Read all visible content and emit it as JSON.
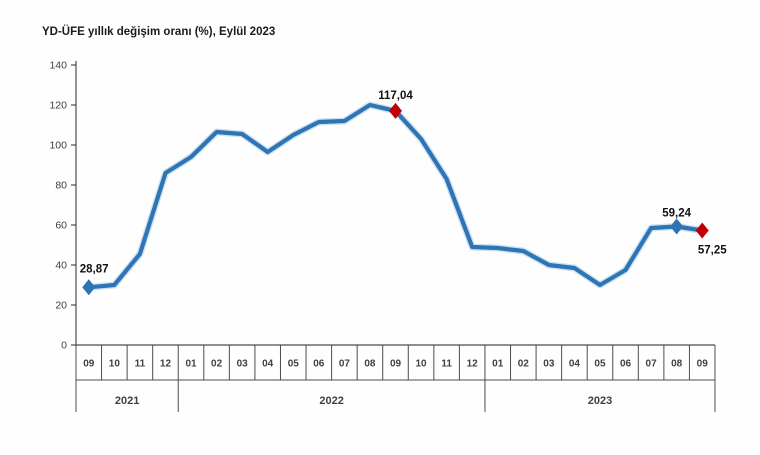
{
  "title": "YD-ÜFE yıllık değişim oranı (%), Eylül 2023",
  "colors": {
    "line": "#2e75b6",
    "line_halo": "#a9c9e5",
    "marker_blue": "#2d74b5",
    "marker_red": "#c00000",
    "axis": "#4d4d4d",
    "tick_text": "#404040",
    "label_text": "#111111"
  },
  "chart_data": {
    "type": "line",
    "title": "YD-ÜFE yıllık değişim oranı (%), Eylül 2023",
    "x_months": [
      "09",
      "10",
      "11",
      "12",
      "01",
      "02",
      "03",
      "04",
      "05",
      "06",
      "07",
      "08",
      "09",
      "10",
      "11",
      "12",
      "01",
      "02",
      "03",
      "04",
      "05",
      "06",
      "07",
      "08",
      "09"
    ],
    "year_groups": [
      {
        "label": "2021",
        "start": 0,
        "count": 4
      },
      {
        "label": "2022",
        "start": 4,
        "count": 12
      },
      {
        "label": "2023",
        "start": 16,
        "count": 9
      }
    ],
    "values": [
      28.87,
      30.0,
      45.5,
      86.0,
      94.0,
      106.5,
      105.5,
      96.5,
      105.0,
      111.5,
      112.0,
      120.0,
      117.04,
      103.0,
      83.0,
      49.0,
      48.5,
      47.0,
      40.0,
      38.5,
      30.0,
      37.5,
      58.5,
      59.24,
      57.25
    ],
    "ylim": [
      0,
      140
    ],
    "yticks": [
      0,
      20,
      40,
      60,
      80,
      100,
      120,
      140
    ],
    "grid": false,
    "legend": "none",
    "annotations": [
      {
        "index": 0,
        "label": "28,87",
        "marker": "blue",
        "placement": "above-left"
      },
      {
        "index": 12,
        "label": "117,04",
        "marker": "red",
        "placement": "above"
      },
      {
        "index": 23,
        "label": "59,24",
        "marker": "blue",
        "placement": "above"
      },
      {
        "index": 24,
        "label": "57,25",
        "marker": "red",
        "placement": "below-right"
      }
    ]
  }
}
